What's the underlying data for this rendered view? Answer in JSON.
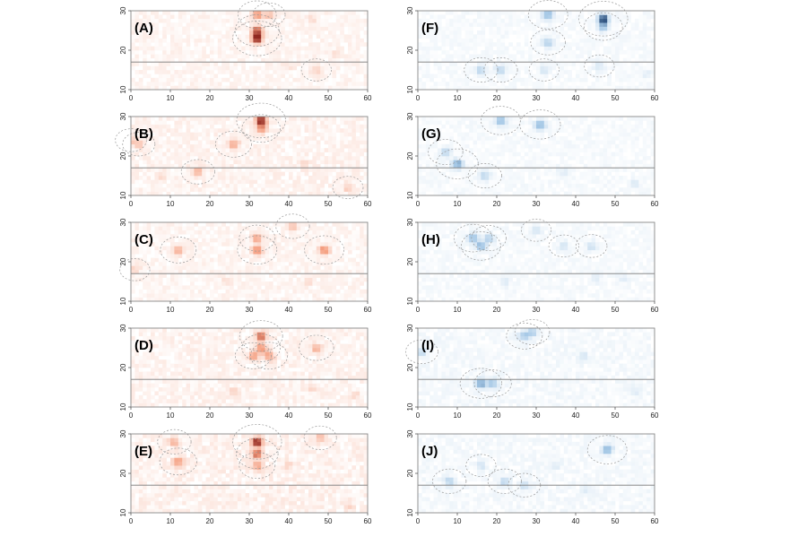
{
  "figure": {
    "colors": {
      "red_scale": "#c0140a",
      "blue_scale": "#0b4f8a",
      "frame": "#888888",
      "contour": "#9a9a9a",
      "refline": "#7a7a7a"
    }
  },
  "chart_data": [
    {
      "type": "heatmap",
      "label": "(A)",
      "palette": "red",
      "xlim": [
        0,
        60
      ],
      "ylim": [
        10,
        30
      ],
      "xticks": [
        0,
        10,
        20,
        30,
        40,
        50,
        60
      ],
      "yticks": [
        10,
        20,
        30
      ],
      "reference_line_y": 17,
      "hotspots": [
        {
          "x": 32,
          "y": 23,
          "v": 1.0
        },
        {
          "x": 32,
          "y": 25,
          "v": 0.8
        },
        {
          "x": 32,
          "y": 29,
          "v": 0.55
        },
        {
          "x": 35,
          "y": 29,
          "v": 0.3
        },
        {
          "x": 47,
          "y": 15,
          "v": 0.2
        },
        {
          "x": 40,
          "y": 16,
          "v": 0.12
        },
        {
          "x": 52,
          "y": 19,
          "v": 0.12
        },
        {
          "x": 46,
          "y": 28,
          "v": 0.12
        }
      ],
      "background": 0.06
    },
    {
      "type": "heatmap",
      "label": "(B)",
      "palette": "red",
      "xlim": [
        0,
        60
      ],
      "ylim": [
        10,
        30
      ],
      "xticks": [
        0,
        10,
        20,
        30,
        40,
        50,
        60
      ],
      "yticks": [
        10,
        20,
        30
      ],
      "reference_line_y": 17,
      "hotspots": [
        {
          "x": 33,
          "y": 29,
          "v": 1.0
        },
        {
          "x": 33,
          "y": 27,
          "v": 0.55
        },
        {
          "x": 26,
          "y": 23,
          "v": 0.45
        },
        {
          "x": 17,
          "y": 16,
          "v": 0.35
        },
        {
          "x": 2,
          "y": 23,
          "v": 0.3
        },
        {
          "x": 0,
          "y": 24,
          "v": 0.25
        },
        {
          "x": 55,
          "y": 12,
          "v": 0.22
        },
        {
          "x": 8,
          "y": 15,
          "v": 0.15
        },
        {
          "x": 44,
          "y": 18,
          "v": 0.12
        }
      ],
      "background": 0.07
    },
    {
      "type": "heatmap",
      "label": "(C)",
      "palette": "red",
      "xlim": [
        0,
        60
      ],
      "ylim": [
        10,
        30
      ],
      "xticks": [
        0,
        10,
        20,
        30,
        40,
        50,
        60
      ],
      "yticks": [
        10,
        20,
        30
      ],
      "reference_line_y": 17,
      "hotspots": [
        {
          "x": 32,
          "y": 23,
          "v": 0.6
        },
        {
          "x": 32,
          "y": 26,
          "v": 0.45
        },
        {
          "x": 49,
          "y": 23,
          "v": 0.6
        },
        {
          "x": 12,
          "y": 23,
          "v": 0.45
        },
        {
          "x": 41,
          "y": 29,
          "v": 0.35
        },
        {
          "x": 1,
          "y": 18,
          "v": 0.2
        },
        {
          "x": 24,
          "y": 15,
          "v": 0.12
        },
        {
          "x": 45,
          "y": 15,
          "v": 0.12
        }
      ],
      "background": 0.06
    },
    {
      "type": "heatmap",
      "label": "(D)",
      "palette": "red",
      "xlim": [
        0,
        60
      ],
      "ylim": [
        10,
        30
      ],
      "xticks": [
        0,
        10,
        20,
        30,
        40,
        50,
        60
      ],
      "yticks": [
        10,
        20,
        30
      ],
      "reference_line_y": 17,
      "hotspots": [
        {
          "x": 33,
          "y": 28,
          "v": 0.75
        },
        {
          "x": 33,
          "y": 25,
          "v": 0.55
        },
        {
          "x": 31,
          "y": 23,
          "v": 0.45
        },
        {
          "x": 35,
          "y": 23,
          "v": 0.5
        },
        {
          "x": 47,
          "y": 25,
          "v": 0.4
        },
        {
          "x": 26,
          "y": 14,
          "v": 0.15
        },
        {
          "x": 46,
          "y": 15,
          "v": 0.15
        },
        {
          "x": 57,
          "y": 13,
          "v": 0.12
        }
      ],
      "background": 0.07
    },
    {
      "type": "heatmap",
      "label": "(E)",
      "palette": "red",
      "xlim": [
        0,
        60
      ],
      "ylim": [
        10,
        30
      ],
      "xticks": [
        0,
        10,
        20,
        30,
        40,
        50,
        60
      ],
      "yticks": [
        10,
        20,
        30
      ],
      "reference_line_y": 17,
      "hotspots": [
        {
          "x": 32,
          "y": 28,
          "v": 1.0
        },
        {
          "x": 32,
          "y": 25,
          "v": 0.7
        },
        {
          "x": 32,
          "y": 22,
          "v": 0.45
        },
        {
          "x": 12,
          "y": 23,
          "v": 0.5
        },
        {
          "x": 11,
          "y": 28,
          "v": 0.35
        },
        {
          "x": 48,
          "y": 29,
          "v": 0.3
        },
        {
          "x": 40,
          "y": 22,
          "v": 0.15
        },
        {
          "x": 55,
          "y": 12,
          "v": 0.15
        }
      ],
      "background": 0.08
    },
    {
      "type": "heatmap",
      "label": "(F)",
      "palette": "blue",
      "xlim": [
        0,
        60
      ],
      "ylim": [
        10,
        30
      ],
      "xticks": [
        0,
        10,
        20,
        30,
        40,
        50,
        60
      ],
      "yticks": [
        10,
        20,
        30
      ],
      "reference_line_y": 17,
      "hotspots": [
        {
          "x": 47,
          "y": 28,
          "v": 1.0
        },
        {
          "x": 47,
          "y": 26,
          "v": 0.55
        },
        {
          "x": 33,
          "y": 29,
          "v": 0.6
        },
        {
          "x": 33,
          "y": 22,
          "v": 0.4
        },
        {
          "x": 16,
          "y": 15,
          "v": 0.35
        },
        {
          "x": 21,
          "y": 15,
          "v": 0.35
        },
        {
          "x": 32,
          "y": 15,
          "v": 0.2
        },
        {
          "x": 46,
          "y": 16,
          "v": 0.2
        },
        {
          "x": 58,
          "y": 14,
          "v": 0.15
        }
      ],
      "background": 0.05
    },
    {
      "type": "heatmap",
      "label": "(G)",
      "palette": "blue",
      "xlim": [
        0,
        60
      ],
      "ylim": [
        10,
        30
      ],
      "xticks": [
        0,
        10,
        20,
        30,
        40,
        50,
        60
      ],
      "yticks": [
        10,
        20,
        30
      ],
      "reference_line_y": 17,
      "hotspots": [
        {
          "x": 21,
          "y": 29,
          "v": 0.6
        },
        {
          "x": 31,
          "y": 28,
          "v": 0.65
        },
        {
          "x": 10,
          "y": 18,
          "v": 0.7
        },
        {
          "x": 7,
          "y": 21,
          "v": 0.4
        },
        {
          "x": 17,
          "y": 15,
          "v": 0.35
        },
        {
          "x": 37,
          "y": 16,
          "v": 0.15
        },
        {
          "x": 55,
          "y": 13,
          "v": 0.15
        }
      ],
      "background": 0.05
    },
    {
      "type": "heatmap",
      "label": "(H)",
      "palette": "blue",
      "xlim": [
        0,
        60
      ],
      "ylim": [
        10,
        30
      ],
      "xticks": [
        0,
        10,
        20,
        30,
        40,
        50,
        60
      ],
      "yticks": [
        10,
        20,
        30
      ],
      "reference_line_y": 17,
      "hotspots": [
        {
          "x": 16,
          "y": 24,
          "v": 0.6
        },
        {
          "x": 14,
          "y": 26,
          "v": 0.55
        },
        {
          "x": 18,
          "y": 26,
          "v": 0.4
        },
        {
          "x": 44,
          "y": 24,
          "v": 0.25
        },
        {
          "x": 37,
          "y": 24,
          "v": 0.2
        },
        {
          "x": 30,
          "y": 28,
          "v": 0.2
        },
        {
          "x": 22,
          "y": 15,
          "v": 0.15
        },
        {
          "x": 45,
          "y": 16,
          "v": 0.15
        },
        {
          "x": 52,
          "y": 16,
          "v": 0.12
        }
      ],
      "background": 0.05
    },
    {
      "type": "heatmap",
      "label": "(I)",
      "palette": "blue",
      "xlim": [
        0,
        60
      ],
      "ylim": [
        10,
        30
      ],
      "xticks": [
        0,
        10,
        20,
        30,
        40,
        50,
        60
      ],
      "yticks": [
        10,
        20,
        30
      ],
      "reference_line_y": 17,
      "hotspots": [
        {
          "x": 16,
          "y": 16,
          "v": 0.7
        },
        {
          "x": 19,
          "y": 16,
          "v": 0.5
        },
        {
          "x": 27,
          "y": 28,
          "v": 0.45
        },
        {
          "x": 29,
          "y": 29,
          "v": 0.4
        },
        {
          "x": 1,
          "y": 24,
          "v": 0.3
        },
        {
          "x": 42,
          "y": 23,
          "v": 0.15
        },
        {
          "x": 55,
          "y": 14,
          "v": 0.15
        }
      ],
      "background": 0.06
    },
    {
      "type": "heatmap",
      "label": "(J)",
      "palette": "blue",
      "xlim": [
        0,
        60
      ],
      "ylim": [
        10,
        30
      ],
      "xticks": [
        0,
        10,
        20,
        30,
        40,
        50,
        60
      ],
      "yticks": [
        10,
        20,
        30
      ],
      "reference_line_y": 17,
      "hotspots": [
        {
          "x": 48,
          "y": 26,
          "v": 0.6
        },
        {
          "x": 8,
          "y": 18,
          "v": 0.35
        },
        {
          "x": 22,
          "y": 18,
          "v": 0.35
        },
        {
          "x": 27,
          "y": 17,
          "v": 0.3
        },
        {
          "x": 16,
          "y": 22,
          "v": 0.2
        },
        {
          "x": 43,
          "y": 16,
          "v": 0.15
        },
        {
          "x": 35,
          "y": 22,
          "v": 0.12
        }
      ],
      "background": 0.06
    }
  ]
}
